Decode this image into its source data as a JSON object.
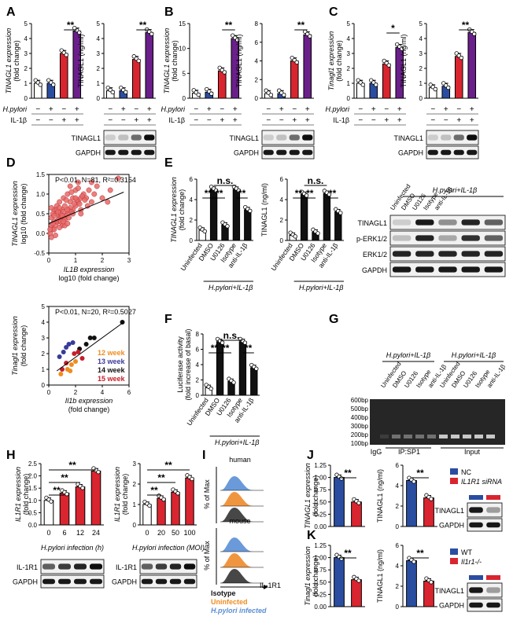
{
  "colors": {
    "white": "#ffffff",
    "blue": "#2a4da0",
    "red": "#d9252f",
    "purple": "#6a1f8a",
    "black": "#111111",
    "dot_red": "#e86a6a",
    "orange": "#f08c1e",
    "navy": "#3a3a9a",
    "dark_red": "#c41e2a",
    "hist_black": "#333333",
    "hist_orange": "#ee8a2a",
    "hist_blue": "#5b8fd6"
  },
  "panels": {
    "A": "A",
    "B": "B",
    "C": "C",
    "D": "D",
    "E": "E",
    "F": "F",
    "G": "G",
    "H": "H",
    "I": "I",
    "J": "J",
    "K": "K"
  },
  "sig": {
    "two": "**",
    "one": "*",
    "ns": "n.s."
  },
  "treat": {
    "hpylori": "H.pylori",
    "il1b": "IL-1β",
    "minus": "−",
    "plus": "+"
  },
  "blots": {
    "tinagl1": "TINAGL1",
    "gapdh": "GAPDH",
    "perk": "p-ERK1/2",
    "erk": "ERK1/2",
    "il1r1": "IL-1R1"
  },
  "A": {
    "ylabel1": "TINAGL1 expression",
    "ylabel1b": "(fold change)",
    "ylabel2": "TINAGL1 (ng/ml)",
    "t1": [
      "0",
      "1",
      "2",
      "3",
      "4",
      "5"
    ],
    "t2": [
      "0",
      "1",
      "2",
      "3",
      "4",
      "5"
    ],
    "chart_data": [
      {
        "type": "bar",
        "title": "TINAGL1 expression",
        "ylabel": "(fold change)",
        "categories": [
          "-/-",
          "+/-",
          "-/+",
          "+/+"
        ],
        "values": [
          1.0,
          1.0,
          3.0,
          4.5
        ],
        "ylim": [
          0,
          5
        ]
      },
      {
        "type": "bar",
        "title": "TINAGL1 (ng/ml)",
        "categories": [
          "-/-",
          "+/-",
          "-/+",
          "+/+"
        ],
        "values": [
          0.5,
          0.5,
          2.6,
          4.4
        ],
        "ylim": [
          0,
          5
        ]
      }
    ]
  },
  "B": {
    "ylabel1": "TINAGL1 expression",
    "ylabel1b": "(fold change)",
    "ylabel2": "TINAGL1 (ng/ml)",
    "t1": [
      "0",
      "5",
      "10",
      "15"
    ],
    "t2": [
      "0",
      "2",
      "4",
      "6",
      "8"
    ],
    "chart_data": [
      {
        "type": "bar",
        "categories": [
          "-/-",
          "+/-",
          "-/+",
          "+/+"
        ],
        "values": [
          1.0,
          1.2,
          5.5,
          12.0
        ],
        "ylim": [
          0,
          15
        ]
      },
      {
        "type": "bar",
        "categories": [
          "-/-",
          "+/-",
          "-/+",
          "+/+"
        ],
        "values": [
          0.5,
          0.5,
          4.0,
          6.8
        ],
        "ylim": [
          0,
          8
        ]
      }
    ]
  },
  "C": {
    "ylabel1": "Tinagl1 expression",
    "ylabel1b": "(fold change)",
    "ylabel2": "TINAGL1 (ng/ml)",
    "t1": [
      "0",
      "1",
      "2",
      "3",
      "4",
      "5"
    ],
    "t2": [
      "0",
      "1",
      "2",
      "3",
      "4",
      "5"
    ],
    "chart_data": [
      {
        "type": "bar",
        "categories": [
          "-/-",
          "+/-",
          "-/+",
          "+/+"
        ],
        "values": [
          1.0,
          1.0,
          2.3,
          3.4
        ],
        "ylim": [
          0,
          5
        ]
      },
      {
        "type": "bar",
        "categories": [
          "-/-",
          "+/-",
          "-/+",
          "+/+"
        ],
        "values": [
          0.7,
          0.8,
          2.8,
          4.4
        ],
        "ylim": [
          0,
          5
        ]
      }
    ]
  },
  "D": {
    "stat1": "P<0.01, N=81, R²=0.3154",
    "ylabel1": "TINAGL1 expression",
    "ylabel1b": "log10 (fold change)",
    "xlabel1": "IL1B expression",
    "xlabel1b": "log10 (fold change)",
    "x1": [
      "0",
      "1",
      "2",
      "3"
    ],
    "y1": [
      "-0.5",
      "0.0",
      "0.5",
      "1.0",
      "1.5"
    ],
    "stat2": "P<0.01, N=20, R²=0.5027",
    "ylabel2": "Tinagl1 expression",
    "ylabel2b": "(fold change)",
    "xlabel2": "Il1b expression",
    "xlabel2b": "(fold change)",
    "x2": [
      "0",
      "2",
      "4",
      "6"
    ],
    "y2": [
      "0",
      "1",
      "2",
      "3",
      "4",
      "5"
    ],
    "legend": [
      "12 week",
      "13 week",
      "14 week",
      "15 week"
    ],
    "chart_data": [
      {
        "type": "scatter",
        "title": "TINAGL1 vs IL1B",
        "x": [
          0.05,
          0.1,
          0.1,
          0.15,
          0.2,
          0.2,
          0.25,
          0.3,
          0.3,
          0.35,
          0.4,
          0.4,
          0.45,
          0.5,
          0.5,
          0.55,
          0.6,
          0.6,
          0.7,
          0.7,
          0.75,
          0.8,
          0.8,
          0.9,
          0.9,
          1.0,
          1.0,
          1.1,
          1.1,
          1.2,
          1.2,
          1.3,
          1.4,
          1.5,
          1.6,
          1.7,
          1.8,
          2.0,
          2.2,
          2.6,
          0.1,
          0.2,
          0.3,
          0.45,
          0.55,
          0.65,
          0.8,
          0.95,
          1.05,
          1.25,
          1.45,
          0.15,
          0.35,
          0.5,
          0.7,
          0.85,
          1.15,
          0.25,
          0.4,
          0.6,
          0.05,
          0.15,
          0.3,
          0.45,
          0.6,
          0.75,
          0.9,
          1.0,
          1.2,
          1.35,
          0.2,
          0.35,
          0.55,
          0.7,
          0.1,
          0.4,
          0.65,
          0.85,
          1.1,
          1.6,
          2.3
        ],
        "y": [
          0.0,
          0.2,
          0.4,
          0.1,
          0.3,
          0.6,
          0.2,
          0.5,
          0.7,
          0.3,
          0.4,
          0.8,
          0.5,
          0.2,
          0.6,
          0.9,
          0.4,
          0.7,
          0.5,
          1.0,
          0.6,
          0.8,
          1.2,
          0.6,
          0.9,
          0.7,
          1.1,
          0.8,
          1.3,
          0.9,
          0.6,
          1.0,
          0.9,
          1.1,
          0.8,
          1.0,
          1.2,
          0.9,
          0.8,
          1.4,
          -0.1,
          0.1,
          0.3,
          0.4,
          0.55,
          0.45,
          0.65,
          0.75,
          0.85,
          0.95,
          0.7,
          0.25,
          0.35,
          0.45,
          0.6,
          0.55,
          0.75,
          -0.05,
          0.15,
          0.35,
          0.1,
          0.5,
          0.6,
          0.3,
          0.2,
          0.4,
          0.5,
          0.9,
          0.5,
          0.85,
          0.45,
          0.55,
          0.3,
          0.25,
          0.65,
          0.65,
          0.85,
          1.05,
          1.15,
          1.3,
          1.1
        ],
        "xlim": [
          0,
          3
        ],
        "ylim": [
          -0.5,
          1.5
        ]
      },
      {
        "type": "scatter",
        "title": "Tinagl1 vs Il1b",
        "series": [
          {
            "name": "12 week",
            "x": [
              0.9,
              1.4,
              1.7,
              2.0,
              1.6
            ],
            "y": [
              0.7,
              1.0,
              1.3,
              1.5,
              0.9
            ]
          },
          {
            "name": "13 week",
            "x": [
              0.8,
              1.1,
              1.3,
              1.5,
              1.8
            ],
            "y": [
              1.8,
              2.1,
              2.4,
              2.6,
              2.7
            ]
          },
          {
            "name": "14 week",
            "x": [
              2.3,
              2.8,
              3.1,
              3.4,
              5.5
            ],
            "y": [
              2.3,
              2.6,
              3.0,
              3.0,
              4.0
            ]
          },
          {
            "name": "15 week",
            "x": [
              1.0,
              1.3,
              1.9,
              2.2,
              2.5
            ],
            "y": [
              1.0,
              1.4,
              2.0,
              2.1,
              1.7
            ]
          }
        ],
        "xlim": [
          0,
          6
        ],
        "ylim": [
          0,
          5
        ]
      }
    ]
  },
  "E": {
    "ylabel1": "TINAGL1 expression",
    "ylabel1b": "(fold change)",
    "ylabel2": "TINAGL1 (ng/ml)",
    "t1": [
      "0",
      "2",
      "4",
      "6"
    ],
    "t2": [
      "0",
      "2",
      "4",
      "6"
    ],
    "xcats": [
      "Uninfected",
      "DMSO",
      "U0126",
      "Isotype",
      "anti-IL-1β"
    ],
    "group": "H.pylori+IL-1β",
    "blot_lanes": [
      "Uninfected",
      "DMSO",
      "U0126",
      "Isotype",
      "anti-IL-1β"
    ],
    "chart_data": [
      {
        "type": "bar",
        "categories": [
          "Uninfected",
          "DMSO",
          "U0126",
          "Isotype",
          "anti-IL-1β"
        ],
        "values": [
          1.0,
          5.0,
          1.5,
          5.0,
          3.0
        ],
        "ylim": [
          0,
          6
        ]
      },
      {
        "type": "bar",
        "categories": [
          "Uninfected",
          "DMSO",
          "U0126",
          "Isotype",
          "anti-IL-1β"
        ],
        "values": [
          0.5,
          4.5,
          0.8,
          4.6,
          2.8
        ],
        "ylim": [
          0,
          6
        ]
      }
    ]
  },
  "F": {
    "ylabel": "Luciferase activity",
    "ylabelb": "(fold increase of basal)",
    "t": [
      "0",
      "2",
      "4",
      "6",
      "8"
    ],
    "xcats": [
      "Uninfected",
      "DMSO",
      "U0126",
      "Isotype",
      "anti-IL-1β"
    ],
    "group": "H.pylori+IL-1β",
    "chart_data": {
      "type": "bar",
      "categories": [
        "Uninfected",
        "DMSO",
        "U0126",
        "Isotype",
        "anti-IL-1β"
      ],
      "values": [
        1.0,
        7.0,
        1.8,
        7.0,
        3.6
      ],
      "ylim": [
        0,
        8
      ]
    }
  },
  "G": {
    "ladder": [
      "600bp",
      "500bp",
      "400bp",
      "300bp",
      "200bp",
      "100bp"
    ],
    "lanes": [
      "Uninfected",
      "DMSO",
      "U0126",
      "Isotype",
      "anti-IL-1β",
      "Uninfected",
      "DMSO",
      "U0126",
      "Isotype",
      "anti-IL-1β"
    ],
    "group": "H.pylori+IL-1β",
    "igg": "IgG",
    "ip": "IP:SP1",
    "input": "Input"
  },
  "H": {
    "ylabel": "IL1R1 expression",
    "ylabelb": "(fold change)",
    "t1": [
      "0.0",
      "0.5",
      "1.0",
      "1.5",
      "2.0",
      "2.5"
    ],
    "t2": [
      "0",
      "1",
      "2",
      "3"
    ],
    "x1": [
      "0",
      "6",
      "12",
      "24"
    ],
    "x2": [
      "0",
      "20",
      "50",
      "100"
    ],
    "xl1": "H.pylori infection (h)",
    "xl2": "H.pylori infection (MOI)",
    "chart_data": [
      {
        "type": "bar",
        "categories": [
          "0",
          "6",
          "12",
          "24"
        ],
        "values": [
          1.0,
          1.3,
          1.55,
          2.2
        ],
        "ylim": [
          0,
          2.5
        ]
      },
      {
        "type": "bar",
        "categories": [
          "0",
          "20",
          "50",
          "100"
        ],
        "values": [
          1.0,
          1.3,
          1.6,
          2.3
        ],
        "ylim": [
          0,
          3
        ]
      }
    ]
  },
  "I": {
    "human": "human",
    "mouse": "mouse",
    "ylabel": "% of Max",
    "xlabel": "IL-1R1",
    "legend": [
      "Isotype",
      "Uninfected",
      "H.pylori infected"
    ]
  },
  "J": {
    "ylabel1": "TINAGL1 expression",
    "ylabel1b": "(fold change)",
    "ylabel2": "TINAGL1 (ng/ml)",
    "t1": [
      "0.00",
      "0.25",
      "0.50",
      "0.75",
      "1.00",
      "1.25"
    ],
    "t2": [
      "0",
      "2",
      "4",
      "6"
    ],
    "legend": [
      "NC",
      "IL1R1 siRNA"
    ],
    "chart_data": [
      {
        "type": "bar",
        "categories": [
          "NC",
          "IL1R1 siRNA"
        ],
        "values": [
          1.0,
          0.5
        ],
        "ylim": [
          0,
          1.25
        ]
      },
      {
        "type": "bar",
        "categories": [
          "NC",
          "IL1R1 siRNA"
        ],
        "values": [
          4.5,
          2.8
        ],
        "ylim": [
          0,
          6
        ]
      }
    ]
  },
  "K": {
    "ylabel1": "Tinagl1 expression",
    "ylabel1b": "(fold change)",
    "ylabel2": "TINAGL1 (ng/ml)",
    "t1": [
      "0.00",
      "0.25",
      "0.50",
      "0.75",
      "1.00",
      "1.25"
    ],
    "t2": [
      "0",
      "2",
      "4",
      "6"
    ],
    "legend": [
      "WT",
      "Il1r1-/-"
    ],
    "chart_data": [
      {
        "type": "bar",
        "categories": [
          "WT",
          "Il1r1-/-"
        ],
        "values": [
          1.0,
          0.55
        ],
        "ylim": [
          0,
          1.25
        ]
      },
      {
        "type": "bar",
        "categories": [
          "WT",
          "Il1r1-/-"
        ],
        "values": [
          4.5,
          2.5
        ],
        "ylim": [
          0,
          6
        ]
      }
    ]
  }
}
